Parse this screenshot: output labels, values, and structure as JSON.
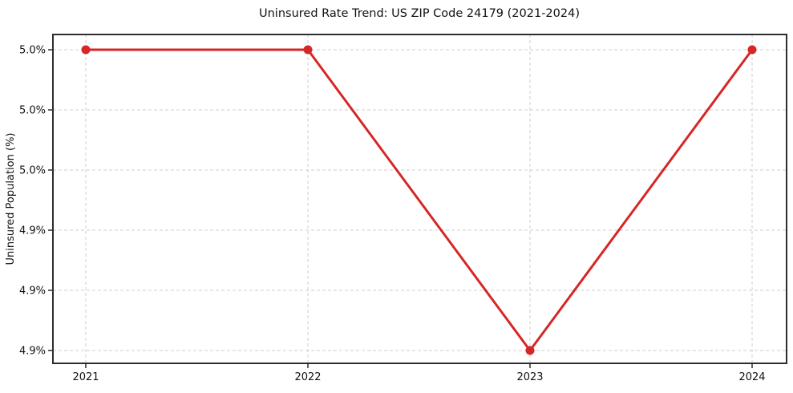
{
  "figure": {
    "title": "Uninsured Rate Trend: US ZIP Code 24179 (2021-2024)"
  },
  "chart_data": {
    "type": "line",
    "title": "Uninsured Rate Trend: US ZIP Code 24179 (2021-2024)",
    "xlabel": "",
    "ylabel": "Uninsured Population (%)",
    "x": [
      2021,
      2022,
      2023,
      2024
    ],
    "x_tick_labels": [
      "2021",
      "2022",
      "2023",
      "2024"
    ],
    "series": [
      {
        "name": "uninsured-rate",
        "values": [
          5.0,
          5.0,
          4.9,
          5.0
        ],
        "color": "#d62728",
        "marker": "circle",
        "line_width": 3,
        "marker_radius": 5.5
      }
    ],
    "y_ticks": [
      {
        "value": 4.9,
        "label": "4.9%"
      },
      {
        "value": 4.92,
        "label": "4.9%"
      },
      {
        "value": 4.94,
        "label": "4.9%"
      },
      {
        "value": 4.96,
        "label": "5.0%"
      },
      {
        "value": 4.98,
        "label": "5.0%"
      },
      {
        "value": 5.0,
        "label": "5.0%"
      }
    ],
    "ylim": [
      4.896,
      5.005
    ],
    "grid": true,
    "grid_style": "dashed",
    "legend": "none",
    "colors": {
      "line": "#d62728",
      "grid": "#cfcfcf",
      "spine": "#2d2d2d",
      "text": "#111111",
      "background": "#ffffff"
    }
  }
}
